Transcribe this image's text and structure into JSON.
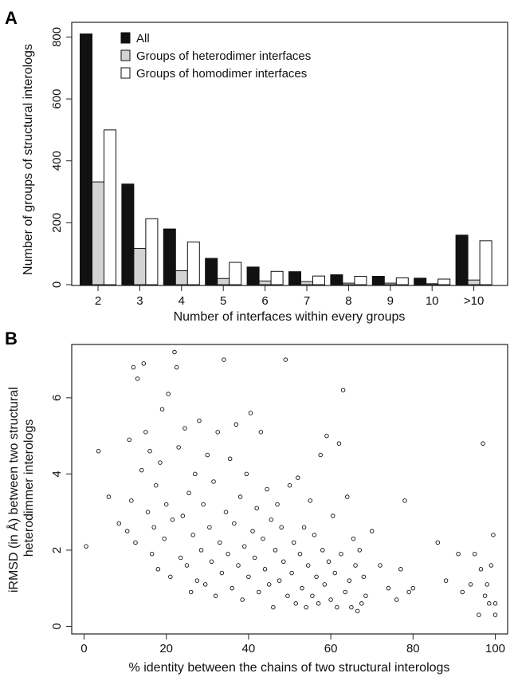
{
  "chart_data": [
    {
      "panel": "A",
      "type": "bar",
      "xlabel": "Number of interfaces within every groups",
      "ylabel": "Number of groups of structural interologs",
      "ylim": [
        0,
        850
      ],
      "yticks": [
        0,
        200,
        400,
        600,
        800
      ],
      "categories": [
        "2",
        "3",
        "4",
        "5",
        "6",
        "7",
        "8",
        "9",
        "10",
        ">10"
      ],
      "legend_position": "top-left",
      "series": [
        {
          "name": "All",
          "color": "#111111",
          "values": [
            810,
            325,
            180,
            85,
            57,
            42,
            32,
            27,
            21,
            160
          ]
        },
        {
          "name": "Groups of heterodimer interfaces",
          "color": "#d3d3d3",
          "values": [
            332,
            117,
            45,
            20,
            12,
            10,
            5,
            5,
            3,
            15
          ]
        },
        {
          "name": "Groups of homodimer interfaces",
          "color": "#ffffff",
          "values": [
            500,
            213,
            138,
            72,
            43,
            28,
            27,
            22,
            18,
            142
          ]
        }
      ]
    },
    {
      "panel": "B",
      "type": "scatter",
      "xlabel": "% identity between the chains of two structural interologs",
      "ylabel": "iRMSD (in Å) between two structural heterodimmer interologs",
      "ylabel_lines": [
        "iRMSD (in Å) between two structural",
        "heterodimmer interologs"
      ],
      "xlim": [
        -3,
        103
      ],
      "ylim": [
        -0.2,
        7.4
      ],
      "xticks": [
        0,
        20,
        40,
        60,
        80,
        100
      ],
      "yticks": [
        0,
        2,
        4,
        6
      ],
      "points": [
        [
          0.5,
          2.1
        ],
        [
          3.5,
          4.6
        ],
        [
          6,
          3.4
        ],
        [
          8.5,
          2.7
        ],
        [
          10.5,
          2.5
        ],
        [
          11,
          4.9
        ],
        [
          11.5,
          3.3
        ],
        [
          12,
          6.8
        ],
        [
          12.5,
          2.2
        ],
        [
          13,
          6.5
        ],
        [
          14,
          4.1
        ],
        [
          14.5,
          6.9
        ],
        [
          15,
          5.1
        ],
        [
          15.5,
          3.0
        ],
        [
          16,
          4.6
        ],
        [
          16.5,
          1.9
        ],
        [
          17,
          2.6
        ],
        [
          17.5,
          3.7
        ],
        [
          18,
          1.5
        ],
        [
          18.5,
          4.3
        ],
        [
          19,
          5.7
        ],
        [
          19.5,
          2.3
        ],
        [
          20,
          3.2
        ],
        [
          20.5,
          6.1
        ],
        [
          21,
          1.3
        ],
        [
          21.5,
          2.8
        ],
        [
          22,
          7.2
        ],
        [
          22.5,
          6.8
        ],
        [
          23,
          4.7
        ],
        [
          23.5,
          1.8
        ],
        [
          24,
          2.9
        ],
        [
          24.5,
          5.2
        ],
        [
          25,
          1.6
        ],
        [
          25.5,
          3.5
        ],
        [
          26,
          0.9
        ],
        [
          26.5,
          2.4
        ],
        [
          27,
          4.0
        ],
        [
          27.5,
          1.2
        ],
        [
          28,
          5.4
        ],
        [
          28.5,
          2.0
        ],
        [
          29,
          3.2
        ],
        [
          29.5,
          1.1
        ],
        [
          30,
          4.5
        ],
        [
          30.5,
          2.6
        ],
        [
          31,
          1.7
        ],
        [
          31.5,
          3.8
        ],
        [
          32,
          0.8
        ],
        [
          32.5,
          5.1
        ],
        [
          33,
          2.2
        ],
        [
          33.5,
          1.4
        ],
        [
          34,
          7.0
        ],
        [
          34.5,
          3.0
        ],
        [
          35,
          1.9
        ],
        [
          35.5,
          4.4
        ],
        [
          36,
          1.0
        ],
        [
          36.5,
          2.7
        ],
        [
          37,
          5.3
        ],
        [
          37.5,
          1.6
        ],
        [
          38,
          3.4
        ],
        [
          38.5,
          0.7
        ],
        [
          39,
          2.1
        ],
        [
          39.5,
          4.0
        ],
        [
          40,
          1.3
        ],
        [
          40.5,
          5.6
        ],
        [
          41,
          2.5
        ],
        [
          41.5,
          1.8
        ],
        [
          42,
          3.1
        ],
        [
          42.5,
          0.9
        ],
        [
          43,
          5.1
        ],
        [
          43.5,
          2.3
        ],
        [
          44,
          1.5
        ],
        [
          44.5,
          3.6
        ],
        [
          45,
          1.1
        ],
        [
          45.5,
          2.8
        ],
        [
          46,
          0.5
        ],
        [
          46.5,
          2.0
        ],
        [
          47,
          3.2
        ],
        [
          47.5,
          1.2
        ],
        [
          48,
          2.6
        ],
        [
          48.5,
          1.7
        ],
        [
          49,
          7.0
        ],
        [
          49.5,
          0.8
        ],
        [
          50,
          3.7
        ],
        [
          50.5,
          1.4
        ],
        [
          51,
          2.2
        ],
        [
          51.5,
          0.6
        ],
        [
          52,
          3.9
        ],
        [
          52.5,
          1.9
        ],
        [
          53,
          1.0
        ],
        [
          53.5,
          2.6
        ],
        [
          54,
          0.5
        ],
        [
          54.5,
          1.6
        ],
        [
          55,
          3.3
        ],
        [
          55.5,
          0.8
        ],
        [
          56,
          2.4
        ],
        [
          56.5,
          1.3
        ],
        [
          57,
          0.6
        ],
        [
          57.5,
          4.5
        ],
        [
          58,
          2.0
        ],
        [
          58.5,
          1.1
        ],
        [
          59,
          5.0
        ],
        [
          59.5,
          1.7
        ],
        [
          60,
          0.7
        ],
        [
          60.5,
          2.9
        ],
        [
          61,
          1.4
        ],
        [
          61.5,
          0.5
        ],
        [
          62,
          4.8
        ],
        [
          62.5,
          1.9
        ],
        [
          63,
          6.2
        ],
        [
          63.5,
          0.9
        ],
        [
          64,
          3.4
        ],
        [
          64.5,
          1.2
        ],
        [
          65,
          0.5
        ],
        [
          65.5,
          2.3
        ],
        [
          66,
          1.6
        ],
        [
          66.5,
          0.4
        ],
        [
          67,
          2.0
        ],
        [
          67.5,
          0.6
        ],
        [
          68,
          1.3
        ],
        [
          68.5,
          0.8
        ],
        [
          70,
          2.5
        ],
        [
          72,
          1.6
        ],
        [
          74,
          1.0
        ],
        [
          76,
          0.7
        ],
        [
          77,
          1.5
        ],
        [
          78,
          3.3
        ],
        [
          79,
          0.9
        ],
        [
          80,
          1.0
        ],
        [
          86,
          2.2
        ],
        [
          88,
          1.2
        ],
        [
          91,
          1.9
        ],
        [
          92,
          0.9
        ],
        [
          94,
          1.1
        ],
        [
          95,
          1.9
        ],
        [
          96,
          0.3
        ],
        [
          96.5,
          1.5
        ],
        [
          97,
          4.8
        ],
        [
          97.5,
          0.8
        ],
        [
          98,
          1.1
        ],
        [
          98.5,
          0.6
        ],
        [
          99,
          1.6
        ],
        [
          99.5,
          2.4
        ],
        [
          100,
          0.6
        ],
        [
          100,
          0.3
        ]
      ]
    }
  ]
}
